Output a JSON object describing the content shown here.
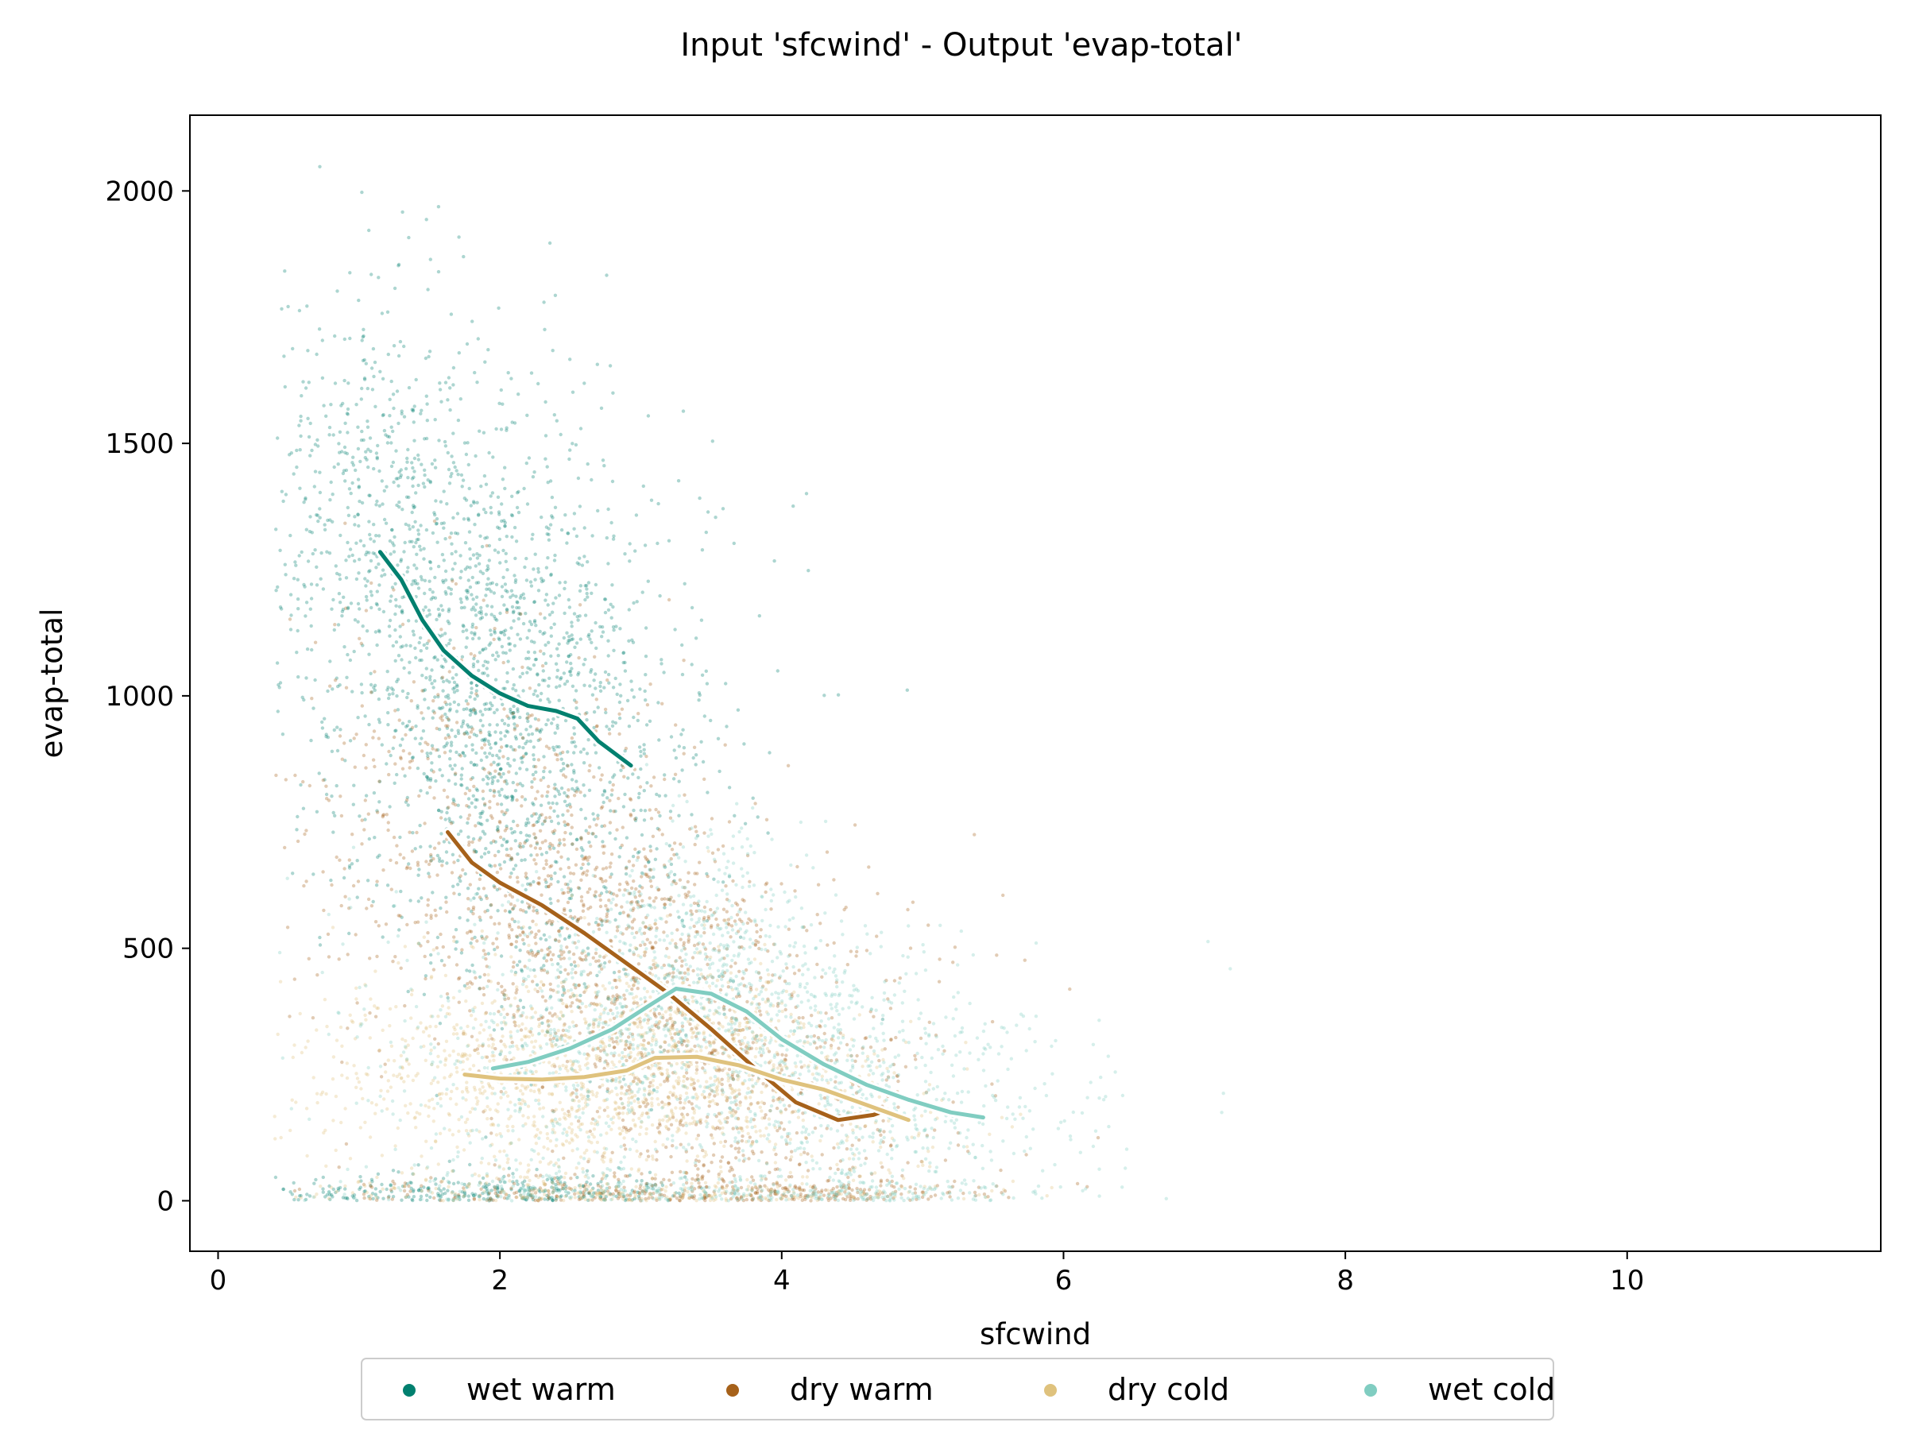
{
  "chart_data": {
    "type": "scatter",
    "title": "Input 'sfcwind' - Output 'evap-total'",
    "xlabel": "sfcwind",
    "ylabel": "evap-total",
    "xlim": [
      -0.2,
      11.8
    ],
    "ylim": [
      -100,
      2150
    ],
    "xticks": [
      0,
      2,
      4,
      6,
      8,
      10
    ],
    "yticks": [
      0,
      500,
      1000,
      1500,
      2000
    ],
    "grid": false,
    "legend_position": "bottom-center",
    "series": [
      {
        "name": "wet warm",
        "color": "#01806f",
        "trend": {
          "x": [
            1.15,
            1.3,
            1.45,
            1.6,
            1.8,
            2.0,
            2.2,
            2.4,
            2.55,
            2.7,
            2.93
          ],
          "y": [
            1285,
            1230,
            1150,
            1090,
            1040,
            1005,
            980,
            970,
            955,
            910,
            862
          ]
        }
      },
      {
        "name": "dry warm",
        "color": "#a6611a",
        "trend": {
          "x": [
            1.63,
            1.8,
            2.0,
            2.3,
            2.6,
            2.9,
            3.2,
            3.5,
            3.8,
            4.1,
            4.4,
            4.65,
            4.75
          ],
          "y": [
            730,
            670,
            630,
            585,
            530,
            470,
            410,
            340,
            265,
            195,
            160,
            170,
            180
          ]
        }
      },
      {
        "name": "dry cold",
        "color": "#dfc27d",
        "trend": {
          "x": [
            1.75,
            2.0,
            2.3,
            2.6,
            2.9,
            3.1,
            3.4,
            3.7,
            4.0,
            4.3,
            4.6,
            4.9
          ],
          "y": [
            250,
            242,
            240,
            245,
            258,
            283,
            285,
            268,
            240,
            220,
            190,
            160
          ]
        }
      },
      {
        "name": "wet cold",
        "color": "#80cdc1",
        "trend": {
          "x": [
            1.95,
            2.2,
            2.5,
            2.8,
            3.05,
            3.25,
            3.5,
            3.75,
            4.0,
            4.3,
            4.6,
            4.9,
            5.2,
            5.43
          ],
          "y": [
            262,
            275,
            302,
            340,
            385,
            420,
            410,
            375,
            320,
            270,
            230,
            200,
            175,
            165
          ]
        }
      }
    ]
  }
}
